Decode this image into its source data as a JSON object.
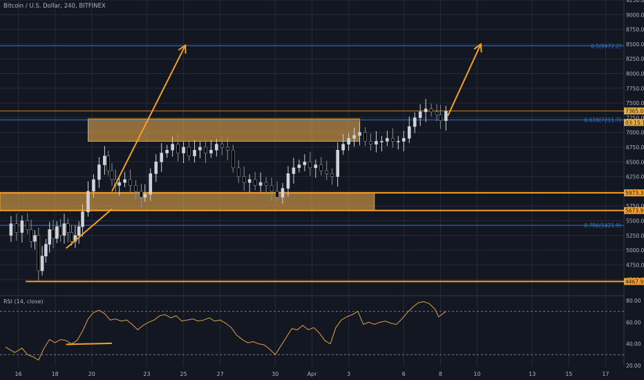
{
  "header": {
    "symbol_title": "Bitcoin / U.S. Dollar, 240, BITFINEX"
  },
  "rsi_panel": {
    "title": "RSI (14, close)"
  },
  "colors": {
    "background": "#131722",
    "grid": "#262b37",
    "up_candle": "#cfd2da",
    "down_candle": "#000000",
    "orange": "#f7a226",
    "blue": "#2e7cd6",
    "rsi_line": "#e0a340"
  },
  "chart_data": [
    {
      "type": "candlestick",
      "title": "Bitcoin / U.S. Dollar, 240, BITFINEX",
      "ylim": [
        4250,
        9250
      ],
      "y_ticks": [
        "9250.0",
        "9000.0",
        "8750.0",
        "8500.0",
        "8250.0",
        "8000.0",
        "7750.0",
        "7500.0",
        "7250.0",
        "7000.0",
        "6750.0",
        "6500.0",
        "6250.0",
        "6000.0",
        "5750.0",
        "5500.0",
        "5250.0",
        "5000.0",
        "4750.0",
        "4500.0"
      ],
      "x_ticks": [
        {
          "label": "16",
          "day": 16
        },
        {
          "label": "18",
          "day": 18
        },
        {
          "label": "20",
          "day": 20
        },
        {
          "label": "23",
          "day": 23
        },
        {
          "label": "25",
          "day": 25
        },
        {
          "label": "27",
          "day": 27
        },
        {
          "label": "30",
          "day": 30
        },
        {
          "label": "Apr",
          "day": 32
        },
        {
          "label": "3",
          "day": 34
        },
        {
          "label": "6",
          "day": 37
        },
        {
          "label": "8",
          "day": 39
        },
        {
          "label": "10",
          "day": 41
        },
        {
          "label": "13",
          "day": 44
        },
        {
          "label": "15",
          "day": 46
        },
        {
          "label": "17",
          "day": 48
        }
      ],
      "close_path": [
        [
          15.3,
          5250
        ],
        [
          15.6,
          5450
        ],
        [
          15.9,
          5300
        ],
        [
          16.2,
          5500
        ],
        [
          16.5,
          5350
        ],
        [
          16.7,
          5150
        ],
        [
          16.9,
          5250
        ],
        [
          17.1,
          4650
        ],
        [
          17.3,
          4900
        ],
        [
          17.5,
          5100
        ],
        [
          17.7,
          5350
        ],
        [
          17.9,
          5200
        ],
        [
          18.1,
          5400
        ],
        [
          18.3,
          5250
        ],
        [
          18.5,
          5450
        ],
        [
          18.7,
          5300
        ],
        [
          18.9,
          5150
        ],
        [
          19.1,
          5250
        ],
        [
          19.3,
          5400
        ],
        [
          19.5,
          5650
        ],
        [
          19.8,
          6000
        ],
        [
          20.1,
          6200
        ],
        [
          20.4,
          6450
        ],
        [
          20.7,
          6600
        ],
        [
          20.9,
          6350
        ],
        [
          21.1,
          6200
        ],
        [
          21.3,
          6100
        ],
        [
          21.5,
          6150
        ],
        [
          21.8,
          6200
        ],
        [
          22.1,
          6100
        ],
        [
          22.4,
          6000
        ],
        [
          22.7,
          5900
        ],
        [
          22.9,
          5950
        ],
        [
          23.2,
          6300
        ],
        [
          23.5,
          6500
        ],
        [
          23.8,
          6650
        ],
        [
          24.1,
          6700
        ],
        [
          24.4,
          6800
        ],
        [
          24.7,
          6650
        ],
        [
          25.0,
          6750
        ],
        [
          25.3,
          6600
        ],
        [
          25.6,
          6700
        ],
        [
          25.9,
          6750
        ],
        [
          26.2,
          6650
        ],
        [
          26.5,
          6700
        ],
        [
          26.8,
          6800
        ],
        [
          27.1,
          6750
        ],
        [
          27.4,
          6700
        ],
        [
          27.7,
          6400
        ],
        [
          28.0,
          6250
        ],
        [
          28.3,
          6150
        ],
        [
          28.6,
          6200
        ],
        [
          28.9,
          6100
        ],
        [
          29.2,
          6150
        ],
        [
          29.5,
          6100
        ],
        [
          29.8,
          6000
        ],
        [
          30.1,
          5900
        ],
        [
          30.4,
          6050
        ],
        [
          30.7,
          6300
        ],
        [
          31.0,
          6400
        ],
        [
          31.3,
          6450
        ],
        [
          31.6,
          6500
        ],
        [
          31.9,
          6400
        ],
        [
          32.2,
          6450
        ],
        [
          32.5,
          6350
        ],
        [
          32.8,
          6300
        ],
        [
          33.1,
          6250
        ],
        [
          33.4,
          6700
        ],
        [
          33.7,
          6800
        ],
        [
          34.0,
          6900
        ],
        [
          34.3,
          6950
        ],
        [
          34.6,
          7000
        ],
        [
          34.9,
          6850
        ],
        [
          35.2,
          6800
        ],
        [
          35.5,
          6850
        ],
        [
          35.8,
          6850
        ],
        [
          36.1,
          6900
        ],
        [
          36.4,
          6850
        ],
        [
          36.7,
          6850
        ],
        [
          37.0,
          6900
        ],
        [
          37.3,
          7100
        ],
        [
          37.6,
          7250
        ],
        [
          37.9,
          7350
        ],
        [
          38.2,
          7400
        ],
        [
          38.5,
          7350
        ],
        [
          38.8,
          7300
        ],
        [
          39.0,
          7200
        ],
        [
          39.3,
          7360
        ]
      ],
      "rsi_ylim": [
        20,
        80
      ],
      "rsi_ticks": [
        "80.00",
        "60.00",
        "40.00",
        "20.00"
      ],
      "rsi_bands": [
        70,
        30
      ],
      "rsi_path": [
        [
          15.3,
          37
        ],
        [
          15.8,
          32
        ],
        [
          16.2,
          36
        ],
        [
          16.5,
          30
        ],
        [
          16.8,
          28
        ],
        [
          17.1,
          25
        ],
        [
          17.4,
          36
        ],
        [
          17.7,
          44
        ],
        [
          18.0,
          41
        ],
        [
          18.3,
          44
        ],
        [
          18.6,
          43
        ],
        [
          18.9,
          40
        ],
        [
          19.2,
          43
        ],
        [
          19.5,
          52
        ],
        [
          19.8,
          63
        ],
        [
          20.1,
          69
        ],
        [
          20.4,
          71
        ],
        [
          20.7,
          68
        ],
        [
          21.0,
          62
        ],
        [
          21.3,
          63
        ],
        [
          21.6,
          61
        ],
        [
          21.9,
          62
        ],
        [
          22.2,
          58
        ],
        [
          22.5,
          53
        ],
        [
          22.8,
          57
        ],
        [
          23.1,
          60
        ],
        [
          23.4,
          62
        ],
        [
          23.7,
          66
        ],
        [
          24.0,
          67
        ],
        [
          24.3,
          64
        ],
        [
          24.6,
          66
        ],
        [
          24.9,
          61
        ],
        [
          25.2,
          62
        ],
        [
          25.5,
          63
        ],
        [
          25.8,
          61
        ],
        [
          26.1,
          62
        ],
        [
          26.4,
          64
        ],
        [
          26.7,
          61
        ],
        [
          27.0,
          62
        ],
        [
          27.3,
          59
        ],
        [
          27.6,
          55
        ],
        [
          27.9,
          48
        ],
        [
          28.2,
          44
        ],
        [
          28.5,
          41
        ],
        [
          28.8,
          42
        ],
        [
          29.1,
          40
        ],
        [
          29.4,
          39
        ],
        [
          29.7,
          35
        ],
        [
          30.0,
          30
        ],
        [
          30.3,
          38
        ],
        [
          30.6,
          46
        ],
        [
          30.9,
          54
        ],
        [
          31.2,
          53
        ],
        [
          31.5,
          57
        ],
        [
          31.8,
          53
        ],
        [
          32.1,
          55
        ],
        [
          32.4,
          50
        ],
        [
          32.7,
          43
        ],
        [
          33.0,
          40
        ],
        [
          33.3,
          55
        ],
        [
          33.6,
          62
        ],
        [
          33.9,
          65
        ],
        [
          34.2,
          67
        ],
        [
          34.5,
          70
        ],
        [
          34.8,
          58
        ],
        [
          35.1,
          60
        ],
        [
          35.4,
          58
        ],
        [
          35.7,
          60
        ],
        [
          36.0,
          61
        ],
        [
          36.3,
          59
        ],
        [
          36.6,
          58
        ],
        [
          36.9,
          63
        ],
        [
          37.2,
          69
        ],
        [
          37.5,
          74
        ],
        [
          37.8,
          78
        ],
        [
          38.1,
          79
        ],
        [
          38.4,
          77
        ],
        [
          38.7,
          72
        ],
        [
          38.9,
          65
        ],
        [
          39.3,
          70
        ]
      ],
      "annotations": {
        "supply_zone": {
          "x1": 19.8,
          "x2": 34.6,
          "y1": 6850,
          "y2": 7230
        },
        "demand_zone": {
          "x1": 15.0,
          "x2": 35.4,
          "y1": 5673.9,
          "y2": 5973.3
        },
        "fib_levels": [
          {
            "label": "0.5(8472.2)",
            "price": 8472.2
          },
          {
            "label": "0.618(7211.7)",
            "price": 7211.7
          },
          {
            "label": "0.786(5421.9)",
            "price": 5421.9
          }
        ],
        "price_levels": [
          {
            "label": "7365.0",
            "price": 7365.0
          },
          {
            "label": "5973.3",
            "price": 5973.3
          },
          {
            "label": "5673.9",
            "price": 5673.9
          },
          {
            "label": "4467.9",
            "price": 4467.9
          }
        ],
        "countdown_label": "03:15:10",
        "countdown_price": 7240,
        "trend_lines": [
          {
            "from": [
              18.6,
              5030
            ],
            "to": [
              21.1,
              5700
            ]
          },
          {
            "from": [
              21.1,
              6000
            ],
            "to": [
              25.1,
              8480
            ]
          },
          {
            "from": [
              39.4,
              7280
            ],
            "to": [
              41.2,
              8500
            ]
          }
        ],
        "rsi_trend_line": {
          "from": [
            18.6,
            39.5
          ],
          "to": [
            21.1,
            40.5
          ]
        }
      }
    }
  ]
}
